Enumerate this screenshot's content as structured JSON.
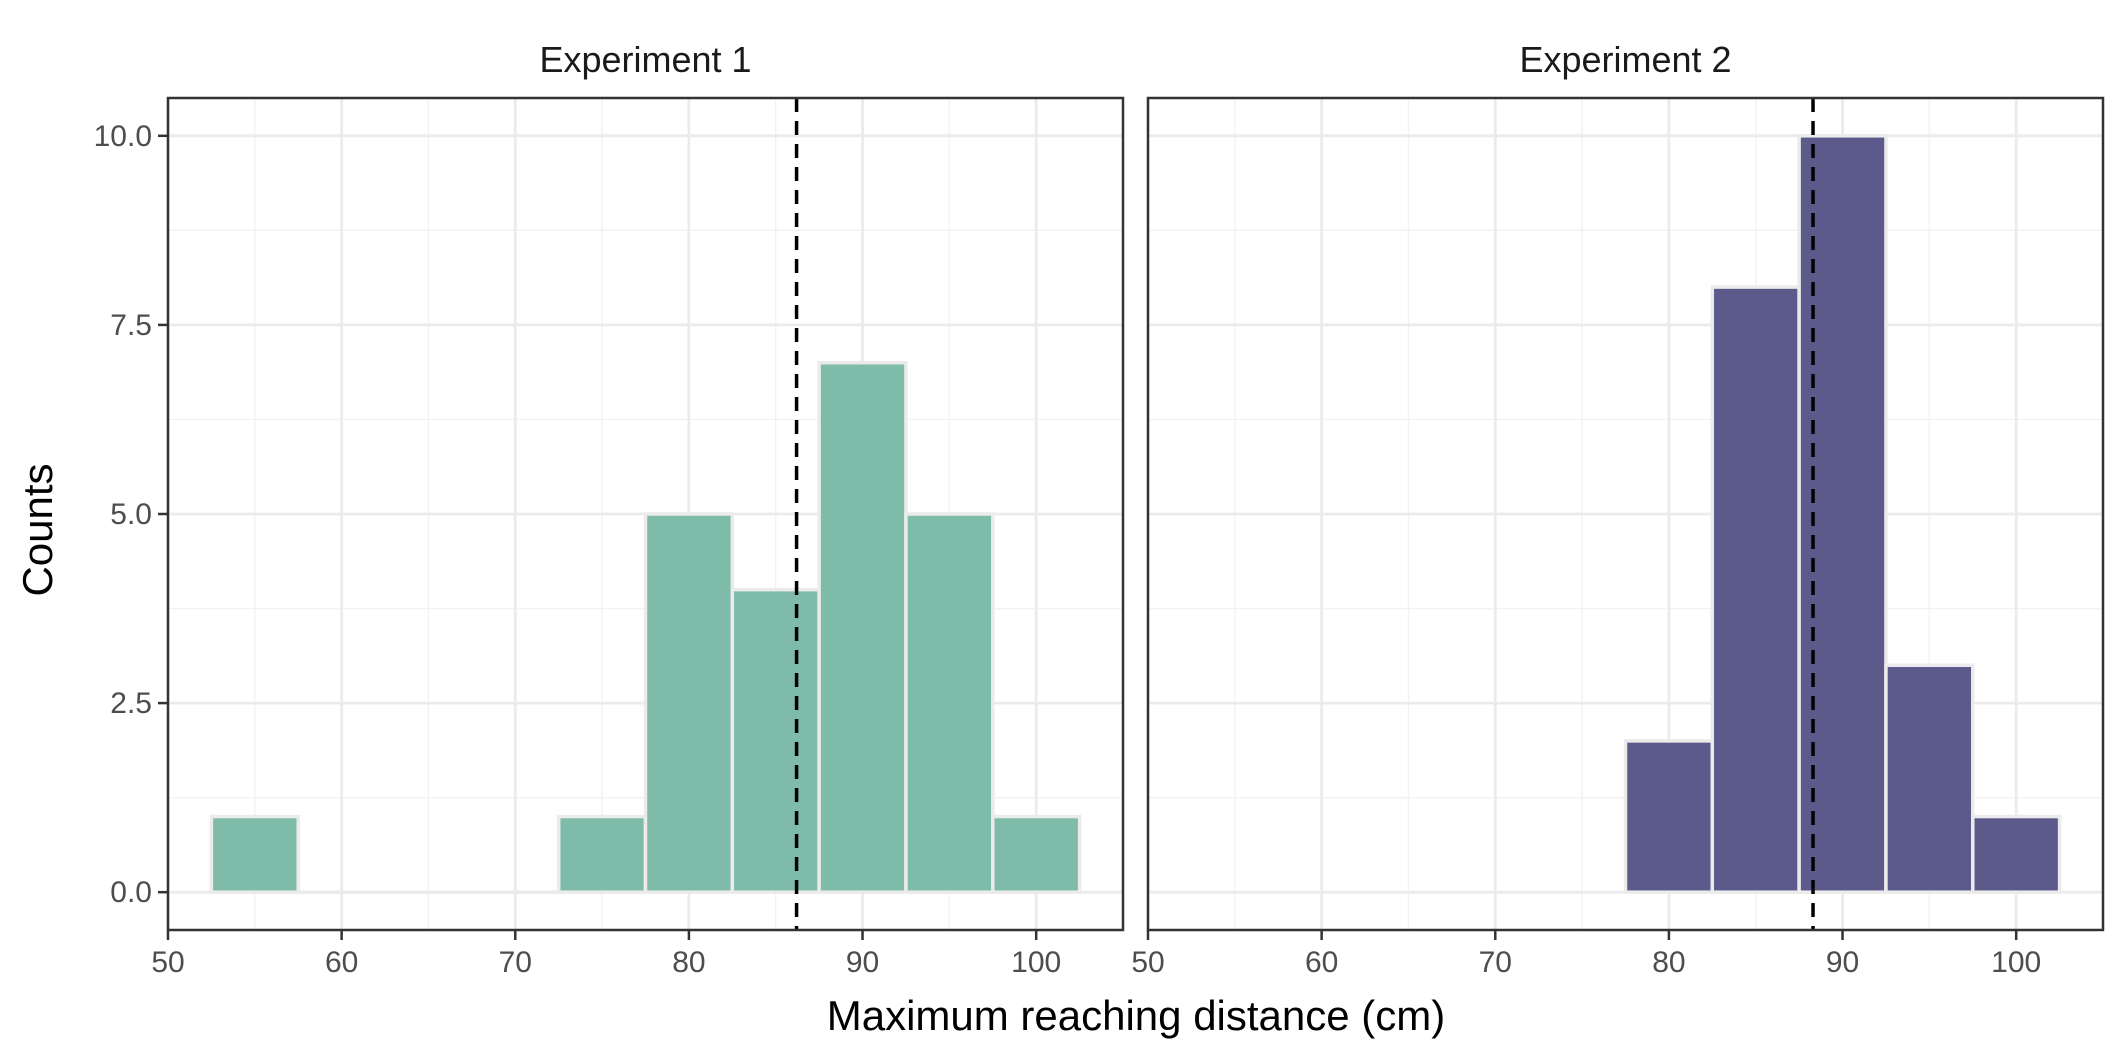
{
  "chart_data": {
    "type": "bar",
    "subtype": "faceted-histogram",
    "xlabel": "Maximum reaching distance (cm)",
    "ylabel": "Counts",
    "xlim": [
      50,
      105
    ],
    "ylim": [
      -0.5,
      10.5
    ],
    "x_ticks": [
      50,
      60,
      70,
      80,
      90,
      100
    ],
    "y_ticks": [
      0.0,
      2.5,
      5.0,
      7.5,
      10.0
    ],
    "y_tick_labels": [
      "0.0",
      "2.5",
      "5.0",
      "7.5",
      "10.0"
    ],
    "bin_width": 5,
    "grid": true,
    "facets": [
      {
        "title": "Experiment 1",
        "color": "#7fbba9",
        "bin_centers": [
          55,
          60,
          65,
          70,
          75,
          80,
          85,
          90,
          95,
          100
        ],
        "counts": [
          1,
          0,
          0,
          0,
          1,
          5,
          4,
          7,
          5,
          1
        ],
        "mean": 86.2
      },
      {
        "title": "Experiment 2",
        "color": "#5b5a8b",
        "bin_centers": [
          80,
          85,
          90,
          95,
          100
        ],
        "counts": [
          2,
          8,
          10,
          3,
          1
        ],
        "mean": 88.3
      }
    ]
  }
}
